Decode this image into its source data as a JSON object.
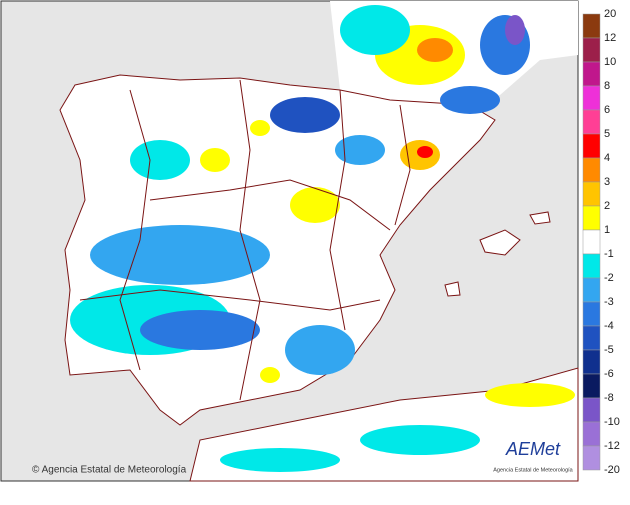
{
  "legend": {
    "labels": [
      20,
      12,
      10,
      8,
      6,
      5,
      4,
      3,
      2,
      1,
      -1,
      -2,
      -3,
      -4,
      -5,
      -6,
      -8,
      -10,
      -12,
      -20
    ],
    "colors": [
      "#8b3a0f",
      "#9c1f4a",
      "#c0178c",
      "#ee30d8",
      "#ff3f95",
      "#ff0000",
      "#ff8a00",
      "#ffc400",
      "#ffff00",
      "#ffffff",
      "#00e8e8",
      "#33a6f0",
      "#2a78e0",
      "#1f52c0",
      "#10308e",
      "#0a1a60",
      "#7a55c8",
      "#9a70d6",
      "#b08fe0"
    ]
  },
  "footer": {
    "copyright": "© Agencia Estatal de Meteorología"
  },
  "logo": {
    "name": "AEMet",
    "subtitle": "Agencia Estatal de Meteorología"
  }
}
